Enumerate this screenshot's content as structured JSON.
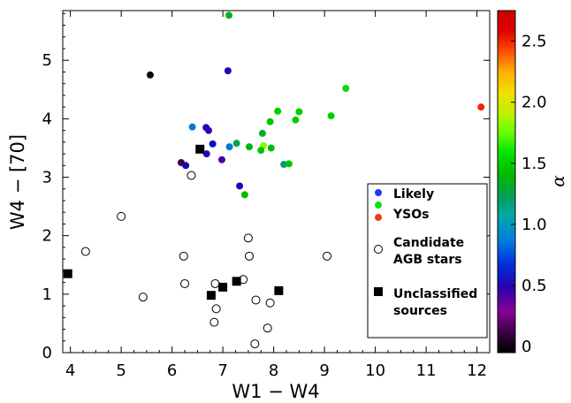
{
  "chart_data": {
    "type": "scatter",
    "xlabel": "W1 − W4",
    "ylabel": "W4 − [70]",
    "xlim": [
      3.85,
      12.25
    ],
    "ylim": [
      0,
      5.85
    ],
    "x_ticks": [
      4,
      5,
      6,
      7,
      8,
      9,
      10,
      11,
      12
    ],
    "y_ticks": [
      0,
      1,
      2,
      3,
      4,
      5
    ],
    "grid": false,
    "legend_position": "lower-right",
    "colorbar": {
      "label": "α",
      "range": [
        -0.05,
        2.75
      ],
      "ticks": [
        0,
        0.5,
        1.0,
        1.5,
        2.0,
        2.5
      ],
      "tick_labels": [
        "0",
        "0.5",
        "1.0",
        "1.5",
        "2.0",
        "2.5"
      ],
      "colormap": "nipy_spectral"
    },
    "legend": {
      "likely_label": "Likely",
      "ysos_label": "YSOs",
      "agb_label_line1": "Candidate",
      "agb_label_line2": "AGB stars",
      "unclassified_label_line1": "Unclassified",
      "unclassified_label_line2": "sources",
      "likely_color": "#1a3cf0",
      "likely_color2": "#12dd12",
      "ysos_color": "#e8401a"
    },
    "series": [
      {
        "name": "Likely YSOs",
        "marker": "filled-circle-colored-by-alpha",
        "points": [
          {
            "x": 5.57,
            "y": 4.75,
            "alpha": 0.0
          },
          {
            "x": 7.12,
            "y": 5.77,
            "alpha": 1.35
          },
          {
            "x": 7.1,
            "y": 4.82,
            "alpha": 0.4
          },
          {
            "x": 9.42,
            "y": 4.52,
            "alpha": 1.6
          },
          {
            "x": 12.08,
            "y": 4.2,
            "alpha": 2.55
          },
          {
            "x": 8.5,
            "y": 4.12,
            "alpha": 1.5
          },
          {
            "x": 8.08,
            "y": 4.13,
            "alpha": 1.5
          },
          {
            "x": 9.13,
            "y": 4.05,
            "alpha": 1.5
          },
          {
            "x": 8.43,
            "y": 3.98,
            "alpha": 1.5
          },
          {
            "x": 7.93,
            "y": 3.95,
            "alpha": 1.45
          },
          {
            "x": 6.4,
            "y": 3.86,
            "alpha": 0.85
          },
          {
            "x": 6.67,
            "y": 3.85,
            "alpha": 0.4
          },
          {
            "x": 6.72,
            "y": 3.8,
            "alpha": 0.4
          },
          {
            "x": 7.78,
            "y": 3.75,
            "alpha": 1.3
          },
          {
            "x": 6.8,
            "y": 3.57,
            "alpha": 0.55
          },
          {
            "x": 7.27,
            "y": 3.58,
            "alpha": 1.25
          },
          {
            "x": 7.13,
            "y": 3.52,
            "alpha": 0.85
          },
          {
            "x": 7.52,
            "y": 3.52,
            "alpha": 1.35
          },
          {
            "x": 7.8,
            "y": 3.54,
            "alpha": 1.85
          },
          {
            "x": 7.75,
            "y": 3.46,
            "alpha": 1.45
          },
          {
            "x": 7.95,
            "y": 3.5,
            "alpha": 1.4
          },
          {
            "x": 6.68,
            "y": 3.4,
            "alpha": 0.4
          },
          {
            "x": 6.98,
            "y": 3.3,
            "alpha": 0.35
          },
          {
            "x": 6.18,
            "y": 3.25,
            "alpha": 0.1
          },
          {
            "x": 6.27,
            "y": 3.2,
            "alpha": 0.45
          },
          {
            "x": 8.2,
            "y": 3.22,
            "alpha": 1.15
          },
          {
            "x": 8.3,
            "y": 3.23,
            "alpha": 1.45
          },
          {
            "x": 7.33,
            "y": 2.85,
            "alpha": 0.4
          },
          {
            "x": 7.43,
            "y": 2.7,
            "alpha": 1.4
          }
        ]
      },
      {
        "name": "Candidate AGB stars",
        "marker": "open-circle",
        "points": [
          {
            "x": 6.38,
            "y": 3.03
          },
          {
            "x": 5.0,
            "y": 2.33
          },
          {
            "x": 4.3,
            "y": 1.73
          },
          {
            "x": 7.5,
            "y": 1.96
          },
          {
            "x": 6.23,
            "y": 1.65
          },
          {
            "x": 7.52,
            "y": 1.65
          },
          {
            "x": 9.05,
            "y": 1.65
          },
          {
            "x": 6.25,
            "y": 1.18
          },
          {
            "x": 6.85,
            "y": 1.18
          },
          {
            "x": 7.4,
            "y": 1.25
          },
          {
            "x": 5.43,
            "y": 0.95
          },
          {
            "x": 7.65,
            "y": 0.9
          },
          {
            "x": 7.93,
            "y": 0.85
          },
          {
            "x": 6.87,
            "y": 0.75
          },
          {
            "x": 6.83,
            "y": 0.52
          },
          {
            "x": 7.88,
            "y": 0.42
          },
          {
            "x": 7.63,
            "y": 0.15
          }
        ]
      },
      {
        "name": "Unclassified sources",
        "marker": "filled-square",
        "points": [
          {
            "x": 3.95,
            "y": 1.35
          },
          {
            "x": 6.55,
            "y": 3.48
          },
          {
            "x": 6.77,
            "y": 0.98
          },
          {
            "x": 7.0,
            "y": 1.12
          },
          {
            "x": 7.27,
            "y": 1.22
          },
          {
            "x": 8.1,
            "y": 1.06
          }
        ]
      }
    ]
  }
}
